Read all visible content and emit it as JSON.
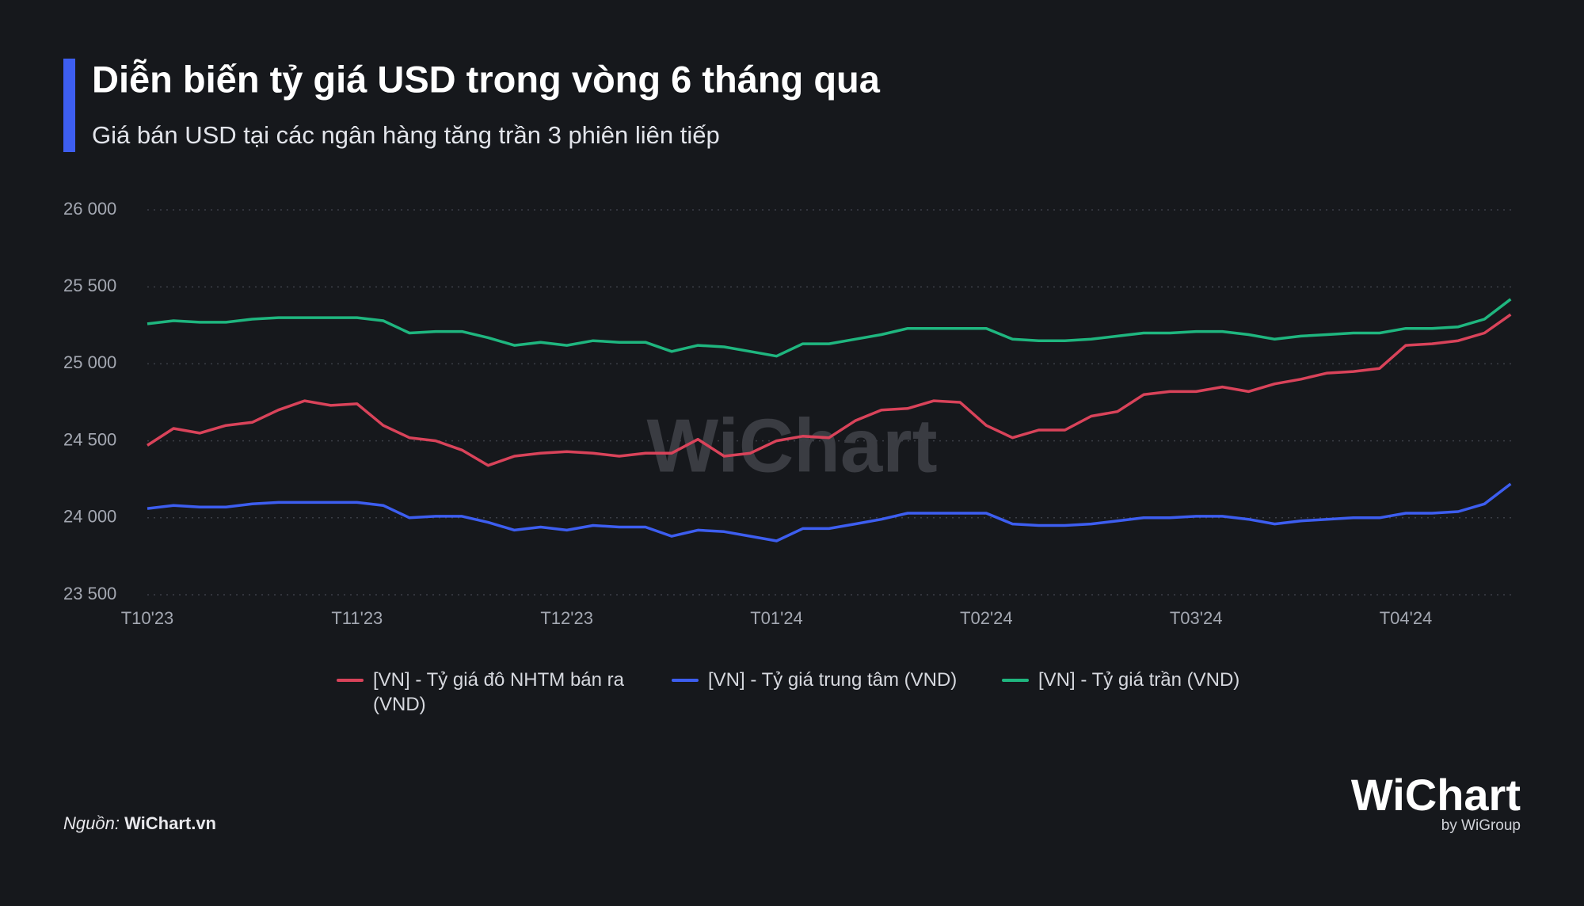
{
  "chart_data": {
    "type": "line",
    "title": "Diễn biến tỷ giá USD trong vòng 6 tháng qua",
    "subtitle": "Giá bán USD tại các ngân hàng tăng trần 3 phiên liên tiếp",
    "categories": [
      "T10'23",
      null,
      null,
      null,
      null,
      null,
      null,
      null,
      "T11'23",
      null,
      null,
      null,
      null,
      null,
      null,
      null,
      "T12'23",
      null,
      null,
      null,
      null,
      null,
      null,
      null,
      "T01'24",
      null,
      null,
      null,
      null,
      null,
      null,
      null,
      "T02'24",
      null,
      null,
      null,
      null,
      null,
      null,
      null,
      "T03'24",
      null,
      null,
      null,
      null,
      null,
      null,
      null,
      "T04'24",
      null,
      null,
      null,
      null
    ],
    "series": [
      {
        "name": "[VN] - Tỷ giá đô NHTM bán ra (VND)",
        "color": "#d9435a",
        "values": [
          24470,
          24580,
          24550,
          24600,
          24620,
          24700,
          24760,
          24730,
          24740,
          24600,
          24520,
          24500,
          24440,
          24340,
          24400,
          24420,
          24430,
          24420,
          24400,
          24420,
          24420,
          24510,
          24400,
          24420,
          24500,
          24530,
          24520,
          24630,
          24700,
          24710,
          24760,
          24750,
          24600,
          24520,
          24570,
          24570,
          24660,
          24690,
          24800,
          24820,
          24820,
          24850,
          24820,
          24870,
          24900,
          24940,
          24950,
          24970,
          25120,
          25130,
          25150,
          25200,
          25320
        ]
      },
      {
        "name": "[VN] - Tỷ giá trung tâm (VND)",
        "color": "#3d5ef0",
        "values": [
          24060,
          24080,
          24070,
          24070,
          24090,
          24100,
          24100,
          24100,
          24100,
          24080,
          24000,
          24010,
          24010,
          23970,
          23920,
          23940,
          23920,
          23950,
          23940,
          23940,
          23880,
          23920,
          23910,
          23880,
          23850,
          23930,
          23930,
          23960,
          23990,
          24030,
          24030,
          24030,
          24030,
          23960,
          23950,
          23950,
          23960,
          23980,
          24000,
          24000,
          24010,
          24010,
          23990,
          23960,
          23980,
          23990,
          24000,
          24000,
          24030,
          24030,
          24040,
          24090,
          24220
        ]
      },
      {
        "name": "[VN] - Tỷ giá trần (VND)",
        "color": "#1fb67f",
        "values": [
          25260,
          25280,
          25270,
          25270,
          25290,
          25300,
          25300,
          25300,
          25300,
          25280,
          25200,
          25210,
          25210,
          25170,
          25120,
          25140,
          25120,
          25150,
          25140,
          25140,
          25080,
          25120,
          25110,
          25080,
          25050,
          25130,
          25130,
          25160,
          25190,
          25230,
          25230,
          25230,
          25230,
          25160,
          25150,
          25150,
          25160,
          25180,
          25200,
          25200,
          25210,
          25210,
          25190,
          25160,
          25180,
          25190,
          25200,
          25200,
          25230,
          25230,
          25240,
          25290,
          25420
        ]
      }
    ],
    "ylim": [
      23500,
      26000
    ],
    "yticks": [
      {
        "value": 23500,
        "label": "23 500"
      },
      {
        "value": 24000,
        "label": "24 000"
      },
      {
        "value": 24500,
        "label": "24 500"
      },
      {
        "value": 25000,
        "label": "25 000"
      },
      {
        "value": 25500,
        "label": "25 500"
      },
      {
        "value": 26000,
        "label": "26 000"
      }
    ],
    "grid": true,
    "legend": "bottom",
    "watermark": "WiChart",
    "source_label": "Nguồn:",
    "source": "WiChart.vn",
    "logo": "WiChart",
    "logo_sub": "by WiGroup"
  }
}
